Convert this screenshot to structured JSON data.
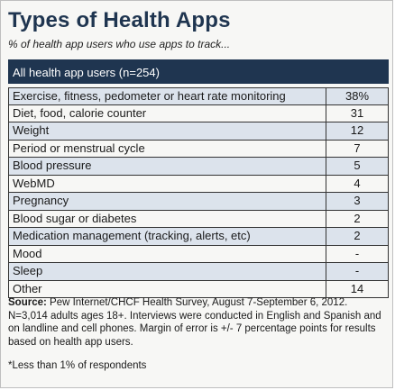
{
  "title": "Types of Health Apps",
  "subtitle": "% of health app users who use apps to track...",
  "chart_data": {
    "type": "table",
    "header": "All health app users (n=254)",
    "rows": [
      {
        "label": "Exercise, fitness, pedometer or heart rate monitoring",
        "value": "38%"
      },
      {
        "label": "Diet, food, calorie counter",
        "value": "31"
      },
      {
        "label": "Weight",
        "value": "12"
      },
      {
        "label": "Period or menstrual cycle",
        "value": "7"
      },
      {
        "label": "Blood pressure",
        "value": "5"
      },
      {
        "label": "WebMD",
        "value": "4"
      },
      {
        "label": "Pregnancy",
        "value": "3"
      },
      {
        "label": "Blood sugar or diabetes",
        "value": "2"
      },
      {
        "label": "Medication management (tracking, alerts, etc)",
        "value": "2"
      },
      {
        "label": "Mood",
        "value": "-"
      },
      {
        "label": "Sleep",
        "value": "-"
      },
      {
        "label": "Other",
        "value": "14"
      }
    ]
  },
  "source": {
    "lead": "Source:",
    "text": " Pew Internet/CHCF Health Survey, August 7-September 6, 2012. N=3,014 adults ages 18+. Interviews were conducted in English and Spanish and on landline and cell phones. Margin of error is +/- 7 percentage points for results based on health app users."
  },
  "footnote": "*Less than 1% of respondents",
  "colors": {
    "header_bg": "#1f3550",
    "title": "#1f3550",
    "shaded_row": "#dce3ec"
  }
}
